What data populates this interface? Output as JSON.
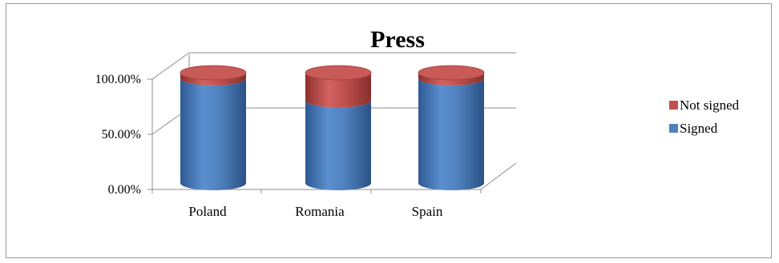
{
  "chart_data": {
    "type": "bar",
    "title": "Press",
    "categories": [
      "Poland",
      "Romania",
      "Spain"
    ],
    "series": [
      {
        "name": "Signed",
        "values": [
          0.95,
          0.75,
          0.95
        ],
        "color": "#4F81BD"
      },
      {
        "name": "Not signed",
        "values": [
          0.05,
          0.25,
          0.05
        ],
        "color": "#C0504D"
      }
    ],
    "ylim": [
      0,
      1
    ],
    "yticks": [
      0,
      0.5,
      1
    ],
    "ytick_labels": [
      "0.00%",
      "50.00%",
      "100.00%"
    ],
    "stacked": true,
    "bar_shape": "cylinder",
    "grid": true,
    "legend_position": "right"
  }
}
